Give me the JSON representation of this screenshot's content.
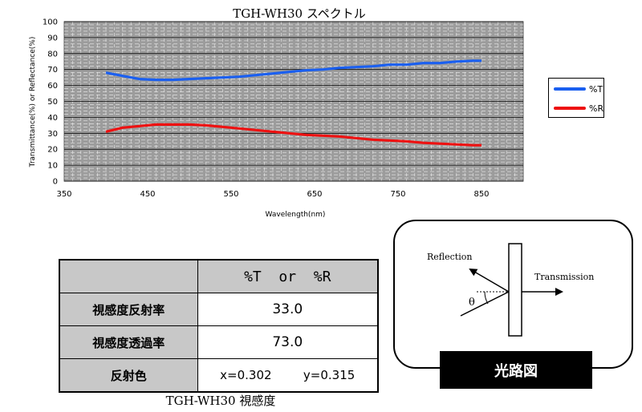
{
  "chart_data": {
    "type": "line",
    "title": "TGH-WH30 スペクトル",
    "xlabel": "Wavelength(nm)",
    "ylabel": "Transmittance(%) or Reflectance(%)",
    "xlim": [
      350,
      900
    ],
    "ylim": [
      0,
      100
    ],
    "x_ticks": [
      350,
      450,
      550,
      650,
      750,
      850
    ],
    "y_ticks": [
      0,
      10,
      20,
      30,
      40,
      50,
      60,
      70,
      80,
      90,
      100
    ],
    "grid": true,
    "legend_position": "right",
    "series": [
      {
        "name": "%T",
        "color": "#1a5ff0",
        "x": [
          400,
          420,
          440,
          460,
          480,
          500,
          520,
          540,
          560,
          580,
          600,
          620,
          640,
          660,
          680,
          700,
          720,
          740,
          760,
          780,
          800,
          820,
          840,
          850
        ],
        "y": [
          68,
          66,
          64,
          63.5,
          63.5,
          64,
          64.5,
          65,
          65.5,
          66.5,
          67.5,
          68.5,
          69.5,
          70,
          71,
          71.5,
          72,
          73,
          73,
          74,
          74,
          75,
          75.5,
          75.5
        ]
      },
      {
        "name": "%R",
        "color": "#ee1111",
        "x": [
          400,
          420,
          440,
          460,
          480,
          500,
          520,
          540,
          560,
          580,
          600,
          620,
          640,
          660,
          680,
          700,
          720,
          740,
          760,
          780,
          800,
          820,
          840,
          850
        ],
        "y": [
          31,
          33.5,
          34.5,
          35.5,
          35.5,
          35.5,
          35,
          34,
          33,
          32,
          31,
          30,
          29,
          28.5,
          28,
          27,
          26,
          25.5,
          25,
          24,
          23.5,
          23,
          22.5,
          22.5
        ]
      }
    ]
  },
  "table": {
    "col_header": "%T  or  %R",
    "rows": [
      {
        "label": "視感度反射率",
        "value": "33.0"
      },
      {
        "label": "視感度透過率",
        "value": "73.0"
      }
    ],
    "color_row": {
      "label": "反射色",
      "x": "x=0.302",
      "y": "y=0.315"
    },
    "caption": "TGH-WH30 視感度"
  },
  "diagram": {
    "reflection_label": "Reflection",
    "transmission_label": "Transmission",
    "angle_label": "θ",
    "title": "光路図"
  }
}
